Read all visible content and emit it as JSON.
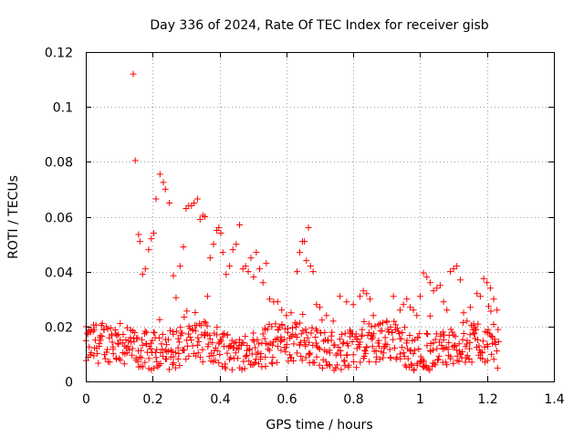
{
  "chart_data": {
    "type": "scatter",
    "title": "Day 336 of 2024, Rate Of TEC Index for receiver gisb",
    "xlabel": "GPS time / hours",
    "ylabel": "ROTI / TECUs",
    "xlim": [
      0,
      1.4
    ],
    "ylim": [
      0,
      0.12
    ],
    "x_ticks": [
      0,
      0.2,
      0.4,
      0.6,
      0.8,
      1,
      1.2,
      1.4
    ],
    "x_tick_labels": [
      "0",
      "0.2",
      "0.4",
      "0.6",
      "0.8",
      "1",
      "1.2",
      "1.4"
    ],
    "y_ticks": [
      0,
      0.02,
      0.04,
      0.06,
      0.08,
      0.1,
      0.12
    ],
    "y_tick_labels": [
      "0",
      "0.02",
      "0.04",
      "0.06",
      "0.08",
      "0.1",
      "0.12"
    ],
    "grid": true,
    "marker": "+",
    "color": "#ff0000",
    "series": [
      {
        "name": "roti-high-points",
        "x": [
          0.142,
          0.148,
          0.158,
          0.162,
          0.17,
          0.178,
          0.188,
          0.196,
          0.203,
          0.21,
          0.222,
          0.232,
          0.238,
          0.25,
          0.262,
          0.27,
          0.282,
          0.292,
          0.3,
          0.308,
          0.316,
          0.324,
          0.334,
          0.342,
          0.35,
          0.356,
          0.364,
          0.372,
          0.382,
          0.392,
          0.398,
          0.404,
          0.41,
          0.42,
          0.43,
          0.44,
          0.45,
          0.46,
          0.47,
          0.478,
          0.486,
          0.494,
          0.502,
          0.51,
          0.52,
          0.53,
          0.54,
          0.55,
          0.562,
          0.574,
          0.586,
          0.6,
          0.614,
          0.632,
          0.64,
          0.648,
          0.654,
          0.66,
          0.666,
          0.672,
          0.68,
          0.69,
          0.7,
          0.72,
          0.74,
          0.76,
          0.78,
          0.8,
          0.82,
          0.83,
          0.84,
          0.85,
          0.86,
          0.88,
          0.9,
          0.92,
          0.94,
          0.95,
          0.96,
          0.97,
          0.98,
          0.99,
          1.0,
          1.01,
          1.02,
          1.03,
          1.04,
          1.05,
          1.06,
          1.07,
          1.08,
          1.09,
          1.1,
          1.11,
          1.12,
          1.13,
          1.14,
          1.15,
          1.16,
          1.17,
          1.18,
          1.19,
          1.2,
          1.21,
          1.22,
          1.23
        ],
        "y": [
          0.112,
          0.0805,
          0.0535,
          0.051,
          0.039,
          0.041,
          0.048,
          0.052,
          0.054,
          0.0665,
          0.0755,
          0.0725,
          0.07,
          0.065,
          0.0385,
          0.0305,
          0.042,
          0.049,
          0.063,
          0.064,
          0.064,
          0.065,
          0.0665,
          0.059,
          0.0605,
          0.06,
          0.031,
          0.045,
          0.05,
          0.055,
          0.056,
          0.054,
          0.047,
          0.039,
          0.042,
          0.048,
          0.05,
          0.057,
          0.041,
          0.042,
          0.04,
          0.045,
          0.038,
          0.047,
          0.041,
          0.036,
          0.043,
          0.03,
          0.029,
          0.029,
          0.026,
          0.024,
          0.025,
          0.04,
          0.047,
          0.051,
          0.051,
          0.044,
          0.056,
          0.042,
          0.04,
          0.028,
          0.027,
          0.024,
          0.022,
          0.031,
          0.029,
          0.028,
          0.031,
          0.033,
          0.032,
          0.03,
          0.024,
          0.021,
          0.022,
          0.031,
          0.026,
          0.028,
          0.03,
          0.027,
          0.026,
          0.024,
          0.031,
          0.0395,
          0.038,
          0.036,
          0.033,
          0.034,
          0.035,
          0.029,
          0.026,
          0.04,
          0.041,
          0.042,
          0.037,
          0.025,
          0.022,
          0.027,
          0.021,
          0.032,
          0.031,
          0.0375,
          0.036,
          0.034,
          0.03,
          0.026
        ]
      },
      {
        "name": "roti-band-points",
        "x_start": 0.0,
        "x_end": 1.235,
        "x_step": 0.0055,
        "base_level": 0.0125,
        "band_halfwidth": 0.0075,
        "points_per_step": 3
      }
    ]
  }
}
